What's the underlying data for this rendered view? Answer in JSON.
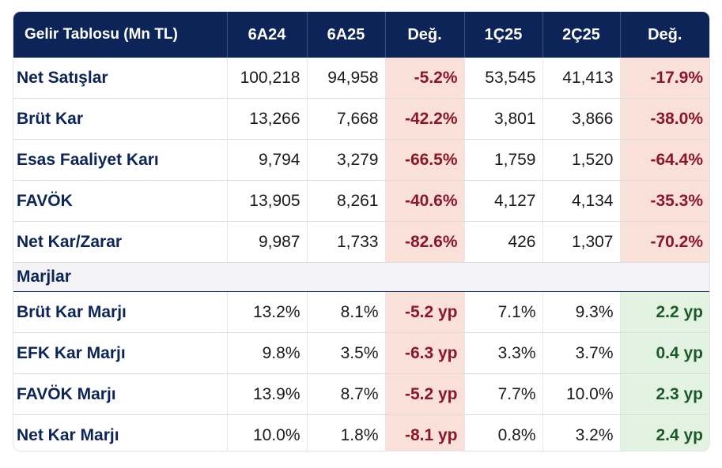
{
  "header": [
    "Gelir Tablosu (Mn TL)",
    "6A24",
    "6A25",
    "Değ.",
    "1Ç25",
    "2Ç25",
    "Değ."
  ],
  "colors": {
    "header_bg": "#0c2458",
    "label_text": "#0c2458",
    "negative_bg": "#f9e0d8",
    "negative_text": "#8a1628",
    "positive_bg": "#e3f3e1",
    "positive_text": "#1c5a2c"
  },
  "income_rows": [
    {
      "label": "Net Satışlar",
      "v1": "100,218",
      "v2": "94,958",
      "d1": "-5.2%",
      "v3": "53,545",
      "v4": "41,413",
      "d2": "-17.9%"
    },
    {
      "label": "Brüt Kar",
      "v1": "13,266",
      "v2": "7,668",
      "d1": "-42.2%",
      "v3": "3,801",
      "v4": "3,866",
      "d2": "-38.0%"
    },
    {
      "label": "Esas Faaliyet Karı",
      "v1": "9,794",
      "v2": "3,279",
      "d1": "-66.5%",
      "v3": "1,759",
      "v4": "1,520",
      "d2": "-64.4%"
    },
    {
      "label": "FAVÖK",
      "v1": "13,905",
      "v2": "8,261",
      "d1": "-40.6%",
      "v3": "4,127",
      "v4": "4,134",
      "d2": "-35.3%"
    },
    {
      "label": "Net Kar/Zarar",
      "v1": "9,987",
      "v2": "1,733",
      "d1": "-82.6%",
      "v3": "426",
      "v4": "1,307",
      "d2": "-70.2%"
    }
  ],
  "section_label": "Marjlar",
  "margin_rows": [
    {
      "label": "Brüt Kar Marjı",
      "v1": "13.2%",
      "v2": "8.1%",
      "d1": "-5.2 yp",
      "v3": "7.1%",
      "v4": "9.3%",
      "d2": "2.2 yp"
    },
    {
      "label": "EFK Kar Marjı",
      "v1": "9.8%",
      "v2": "3.5%",
      "d1": "-6.3 yp",
      "v3": "3.3%",
      "v4": "3.7%",
      "d2": "0.4 yp"
    },
    {
      "label": "FAVÖK Marjı",
      "v1": "13.9%",
      "v2": "8.7%",
      "d1": "-5.2 yp",
      "v3": "7.7%",
      "v4": "10.0%",
      "d2": "2.3 yp"
    },
    {
      "label": "Net Kar Marjı",
      "v1": "10.0%",
      "v2": "1.8%",
      "d1": "-8.1 yp",
      "v3": "0.8%",
      "v4": "3.2%",
      "d2": "2.4 yp"
    }
  ]
}
